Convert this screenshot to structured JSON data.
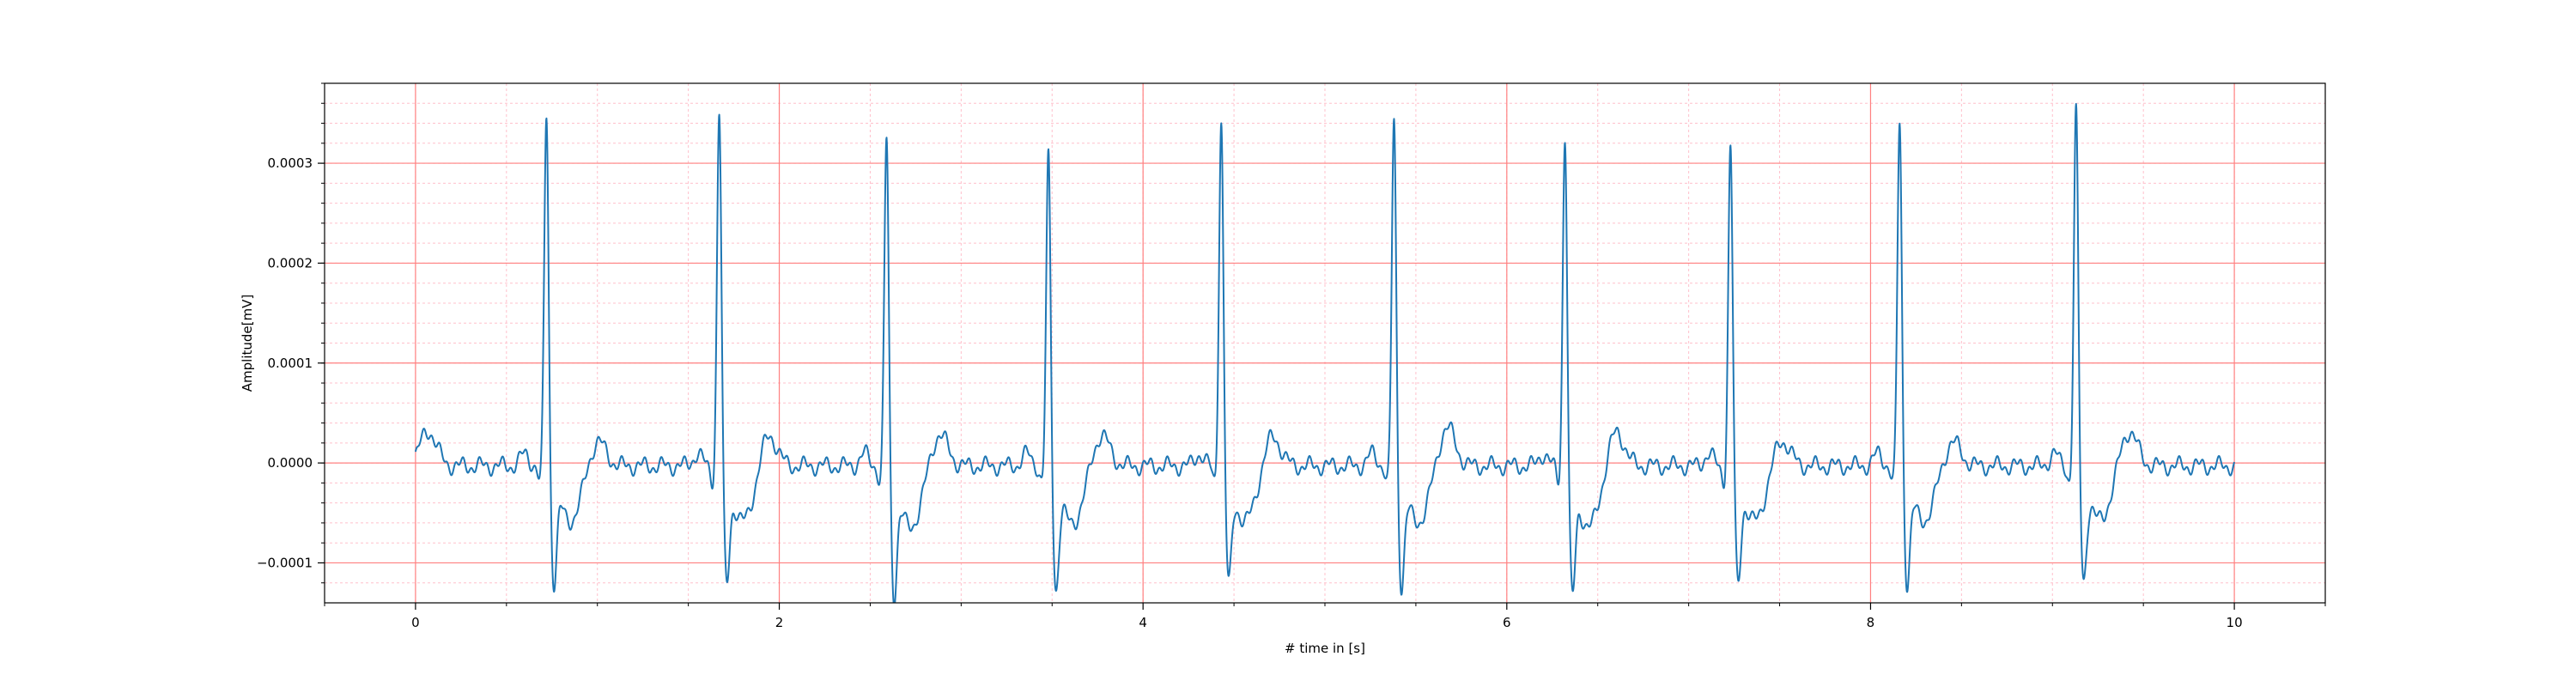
{
  "chart_data": {
    "type": "line",
    "title": "",
    "xlabel": "# time in [s]",
    "ylabel": "Amplitude[mV]",
    "xlim": [
      -0.5,
      10.5
    ],
    "ylim": [
      -0.00014,
      0.00038
    ],
    "grid": {
      "major": true,
      "minor": true,
      "major_color": "#ff8080",
      "minor_color": "#ffc0cb"
    },
    "x_ticks": [
      0,
      2,
      4,
      6,
      8,
      10
    ],
    "x_tick_labels": [
      "0",
      "2",
      "4",
      "6",
      "8",
      "10"
    ],
    "y_ticks": [
      -0.0001,
      0.0,
      0.0001,
      0.0002,
      0.0003
    ],
    "y_tick_labels": [
      "−0.0001",
      "0.0000",
      "0.0001",
      "0.0002",
      "0.0003"
    ],
    "series": [
      {
        "color": "#1f77b4",
        "x_range": [
          0,
          10
        ],
        "baseline": -3e-06,
        "beats": [
          {
            "r_time": 0.72,
            "r_amp": 0.000358,
            "s_amp": -0.0001
          },
          {
            "r_time": 1.67,
            "r_amp": 0.00036,
            "s_amp": -0.0001
          },
          {
            "r_time": 2.59,
            "r_amp": 0.000335,
            "s_amp": -0.000112
          },
          {
            "r_time": 3.48,
            "r_amp": 0.000315,
            "s_amp": -0.000105
          },
          {
            "r_time": 4.43,
            "r_amp": 0.000352,
            "s_amp": -0.0001
          },
          {
            "r_time": 5.38,
            "r_amp": 0.000353,
            "s_amp": -0.000103
          },
          {
            "r_time": 6.32,
            "r_amp": 0.000337,
            "s_amp": -0.000111
          },
          {
            "r_time": 7.23,
            "r_amp": 0.000325,
            "s_amp": -0.0001
          },
          {
            "r_time": 8.16,
            "r_amp": 0.00035,
            "s_amp": -0.0001
          },
          {
            "r_time": 9.13,
            "r_amp": 0.00036,
            "s_amp": -9.8e-05
          }
        ],
        "t_waves": [
          {
            "time": 0.07,
            "amp": 3.5e-05
          },
          {
            "time": 1.0,
            "amp": 2.6e-05
          },
          {
            "time": 1.94,
            "amp": 3.3e-05
          },
          {
            "time": 2.88,
            "amp": 3.3e-05
          },
          {
            "time": 3.77,
            "amp": 3.2e-05
          },
          {
            "time": 4.71,
            "amp": 3.1e-05
          },
          {
            "time": 5.67,
            "amp": 4e-05
          },
          {
            "time": 6.6,
            "amp": 3.6e-05
          },
          {
            "time": 7.51,
            "amp": 2.7e-05
          },
          {
            "time": 8.45,
            "amp": 2.5e-05
          },
          {
            "time": 9.42,
            "amp": 3.6e-05
          }
        ]
      }
    ]
  }
}
